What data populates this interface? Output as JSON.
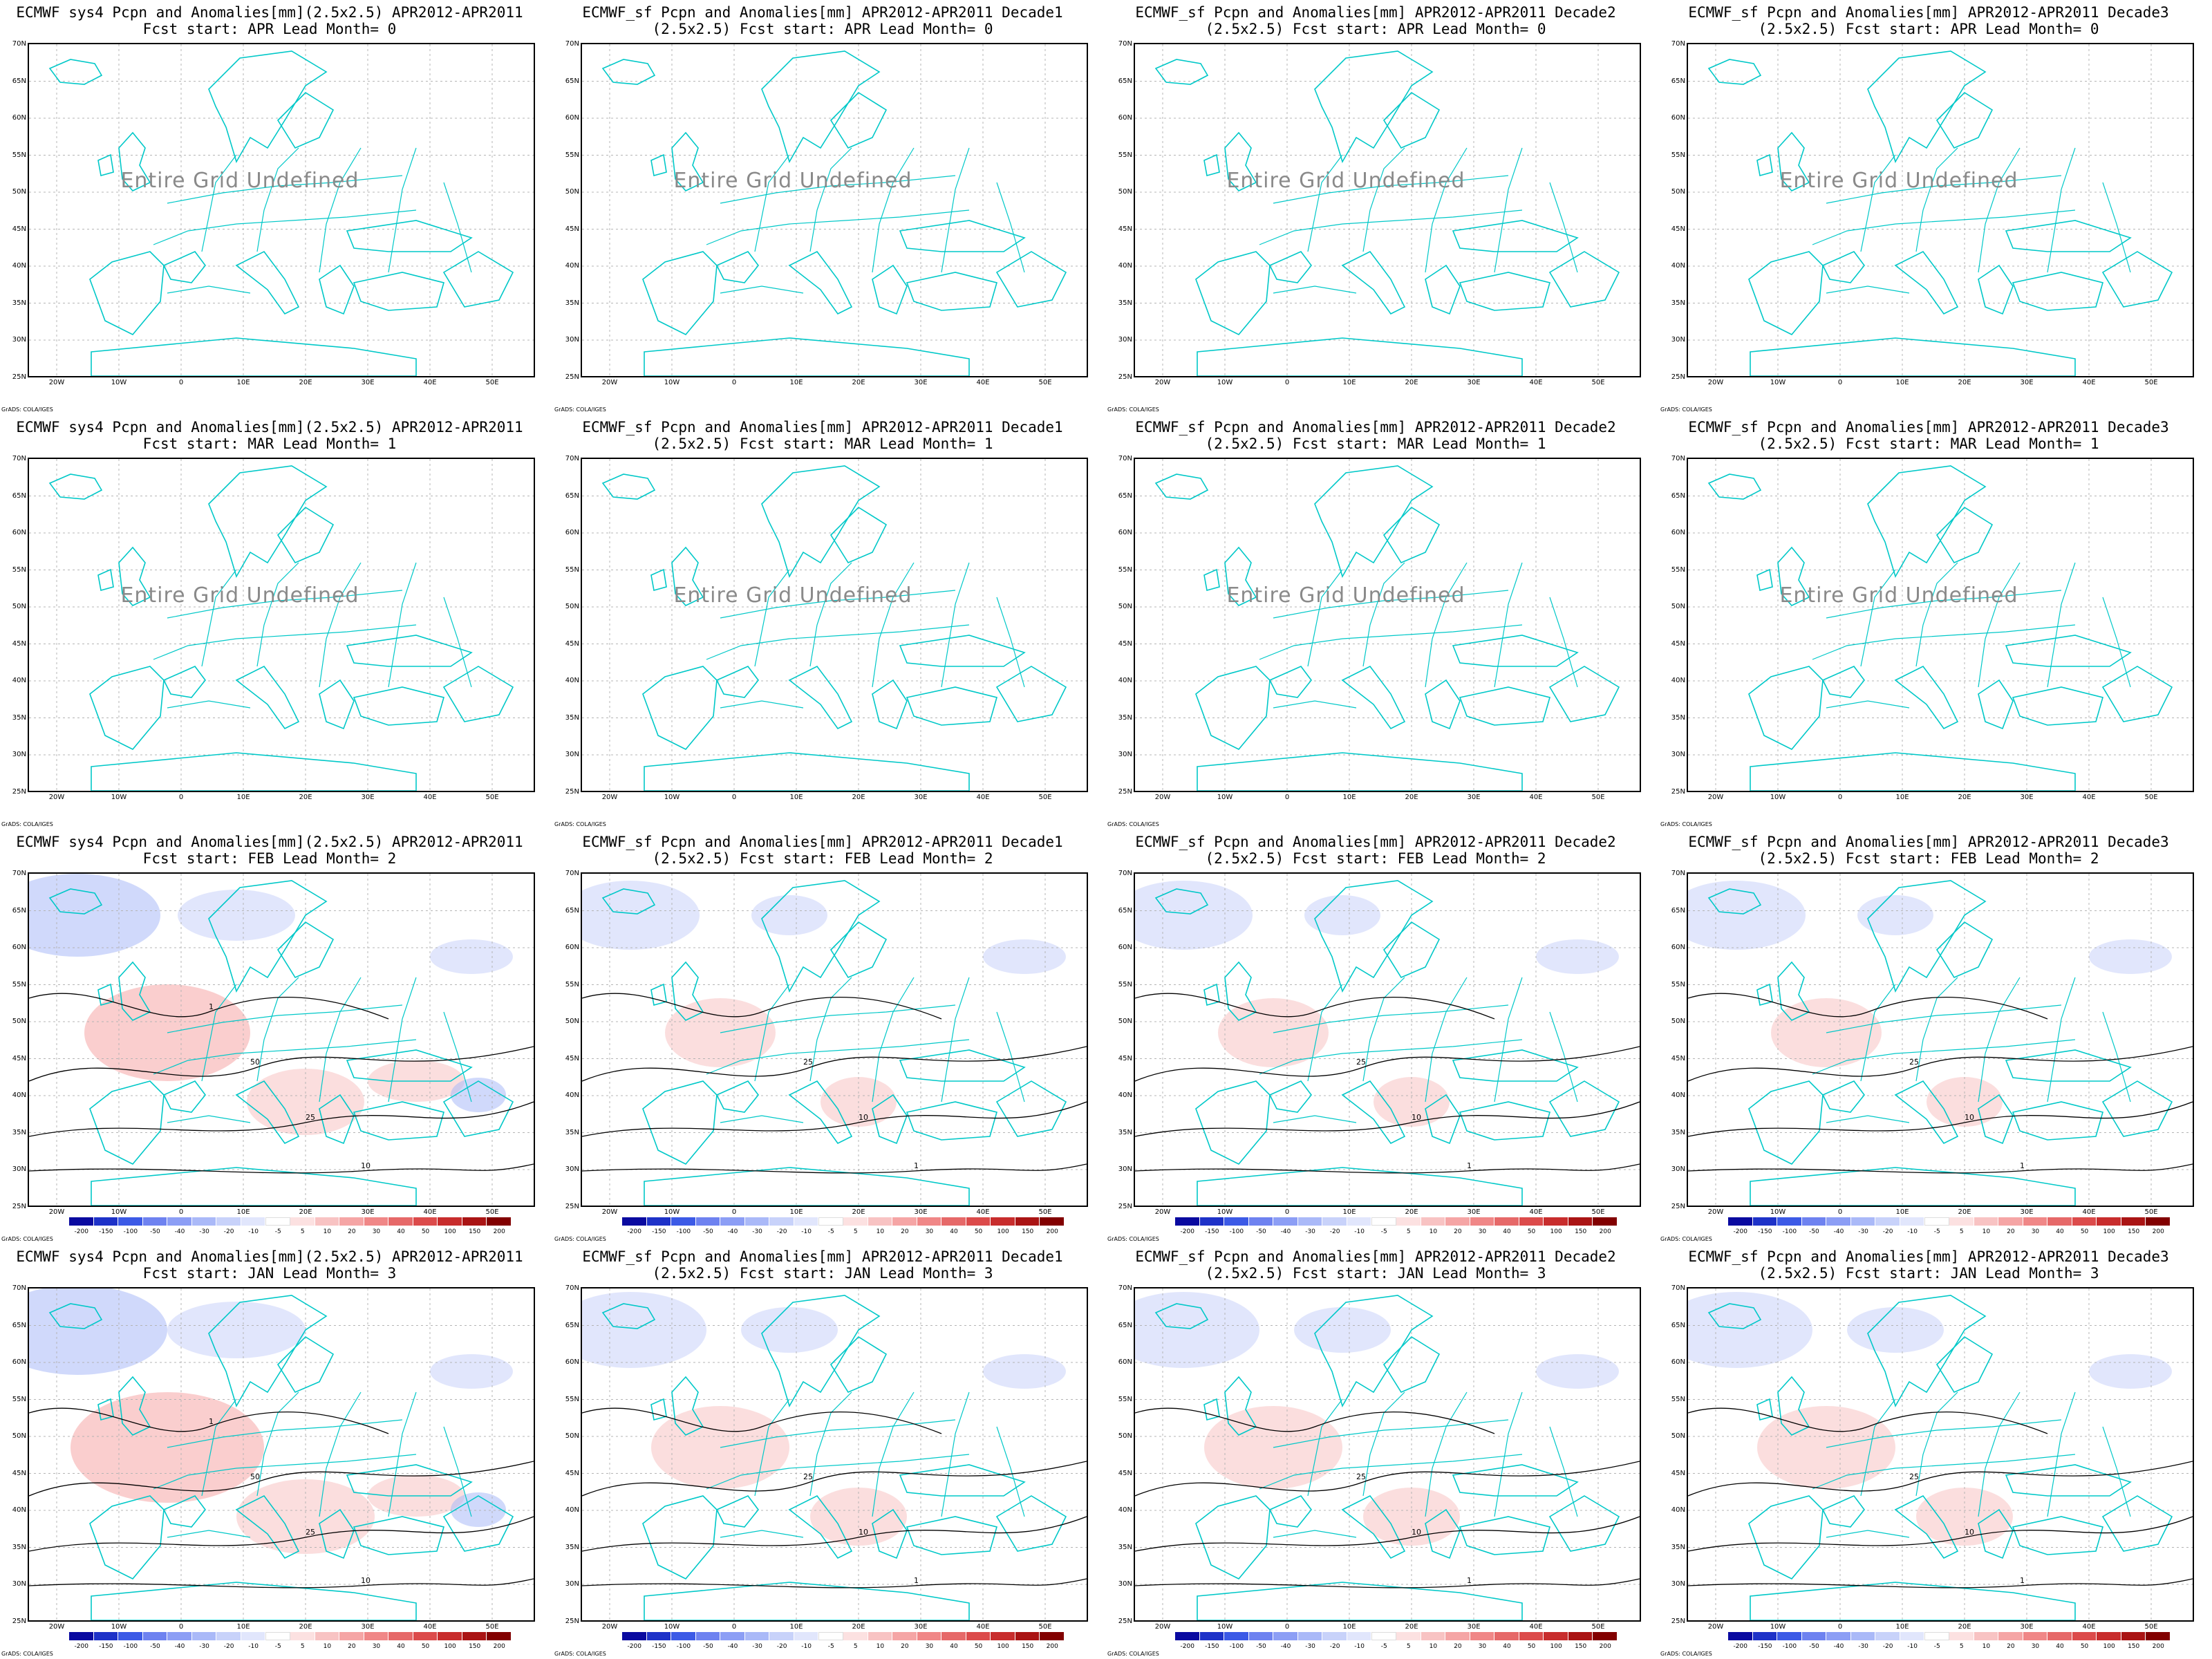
{
  "figure": {
    "credit": "GrADS: COLA/IGES",
    "undefined_message": "Entire Grid Undefined",
    "y_ticks": [
      "70N",
      "65N",
      "60N",
      "55N",
      "50N",
      "45N",
      "40N",
      "35N",
      "30N",
      "25N"
    ],
    "x_ticks": [
      "20W",
      "10W",
      "0",
      "10E",
      "20E",
      "30E",
      "40E",
      "50E"
    ],
    "colorbar_labels": [
      "-200",
      "-150",
      "-100",
      "-50",
      "-40",
      "-30",
      "-20",
      "-10",
      "-5",
      "5",
      "10",
      "20",
      "30",
      "40",
      "50",
      "100",
      "150",
      "200"
    ],
    "colorbar_colors": [
      "#0a0aa0",
      "#1e32c8",
      "#3c5ae6",
      "#6e82f0",
      "#8c9ef5",
      "#aab9f8",
      "#c8d2fa",
      "#e1e6fc",
      "#ffffff",
      "#fce1e1",
      "#f8c3c3",
      "#f5a5a5",
      "#f08787",
      "#e66969",
      "#dc4b4b",
      "#c82d2d",
      "#aa1414",
      "#820000"
    ],
    "colors": {
      "coastline": "#00c8c8",
      "contour": "#000000",
      "grid": "#b4b4b4",
      "undefined_text": "#8a8a8a"
    }
  },
  "panels": [
    {
      "title1": "ECMWF sys4 Pcpn and Anomalies[mm](2.5x2.5) APR2012-APR2011",
      "title2": "Fcst start: APR  Lead Month= 0",
      "undefined": true,
      "colorbar": false,
      "level": 0,
      "contour_labels": []
    },
    {
      "title1": "ECMWF_sf Pcpn and Anomalies[mm] APR2012-APR2011 Decade1",
      "title2": "(2.5x2.5) Fcst start: APR  Lead Month= 0",
      "undefined": true,
      "colorbar": false,
      "level": 0,
      "contour_labels": []
    },
    {
      "title1": "ECMWF_sf Pcpn and Anomalies[mm] APR2012-APR2011 Decade2",
      "title2": "(2.5x2.5) Fcst start: APR  Lead Month= 0",
      "undefined": true,
      "colorbar": false,
      "level": 0,
      "contour_labels": []
    },
    {
      "title1": "ECMWF_sf Pcpn and Anomalies[mm] APR2012-APR2011 Decade3",
      "title2": "(2.5x2.5) Fcst start: APR  Lead Month= 0",
      "undefined": true,
      "colorbar": false,
      "level": 0,
      "contour_labels": []
    },
    {
      "title1": "ECMWF sys4 Pcpn and Anomalies[mm](2.5x2.5) APR2012-APR2011",
      "title2": "Fcst start: MAR  Lead Month= 1",
      "undefined": true,
      "colorbar": false,
      "level": 0,
      "contour_labels": []
    },
    {
      "title1": "ECMWF_sf Pcpn and Anomalies[mm] APR2012-APR2011 Decade1",
      "title2": "(2.5x2.5) Fcst start: MAR  Lead Month= 1",
      "undefined": true,
      "colorbar": false,
      "level": 0,
      "contour_labels": []
    },
    {
      "title1": "ECMWF_sf Pcpn and Anomalies[mm] APR2012-APR2011 Decade2",
      "title2": "(2.5x2.5) Fcst start: MAR  Lead Month= 1",
      "undefined": true,
      "colorbar": false,
      "level": 0,
      "contour_labels": []
    },
    {
      "title1": "ECMWF_sf Pcpn and Anomalies[mm] APR2012-APR2011 Decade3",
      "title2": "(2.5x2.5) Fcst start: MAR  Lead Month= 1",
      "undefined": true,
      "colorbar": false,
      "level": 0,
      "contour_labels": []
    },
    {
      "title1": "ECMWF sys4 Pcpn and Anomalies[mm](2.5x2.5) APR2012-APR2011",
      "title2": "Fcst start: FEB  Lead Month= 2",
      "undefined": false,
      "colorbar": true,
      "level": 3,
      "contour_labels": [
        "50",
        "25",
        "10",
        "1"
      ]
    },
    {
      "title1": "ECMWF_sf Pcpn and Anomalies[mm] APR2012-APR2011 Decade1",
      "title2": "(2.5x2.5) Fcst start: FEB  Lead Month= 2",
      "undefined": false,
      "colorbar": true,
      "level": 1,
      "contour_labels": [
        "25",
        "10",
        "1"
      ]
    },
    {
      "title1": "ECMWF_sf Pcpn and Anomalies[mm] APR2012-APR2011 Decade2",
      "title2": "(2.5x2.5) Fcst start: FEB  Lead Month= 2",
      "undefined": false,
      "colorbar": true,
      "level": 1,
      "contour_labels": [
        "25",
        "10",
        "1"
      ]
    },
    {
      "title1": "ECMWF_sf Pcpn and Anomalies[mm] APR2012-APR2011 Decade3",
      "title2": "(2.5x2.5) Fcst start: FEB  Lead Month= 2",
      "undefined": false,
      "colorbar": true,
      "level": 1,
      "contour_labels": [
        "25",
        "10",
        "1"
      ]
    },
    {
      "title1": "ECMWF sys4 Pcpn and Anomalies[mm](2.5x2.5) APR2012-APR2011",
      "title2": "Fcst start: JAN  Lead Month= 3",
      "undefined": false,
      "colorbar": true,
      "level": 4,
      "contour_labels": [
        "50",
        "25",
        "10",
        "1"
      ]
    },
    {
      "title1": "ECMWF_sf Pcpn and Anomalies[mm] APR2012-APR2011 Decade1",
      "title2": "(2.5x2.5) Fcst start: JAN  Lead Month= 3",
      "undefined": false,
      "colorbar": true,
      "level": 2,
      "contour_labels": [
        "25",
        "10",
        "1"
      ]
    },
    {
      "title1": "ECMWF_sf Pcpn and Anomalies[mm] APR2012-APR2011 Decade2",
      "title2": "(2.5x2.5) Fcst start: JAN  Lead Month= 3",
      "undefined": false,
      "colorbar": true,
      "level": 2,
      "contour_labels": [
        "25",
        "10",
        "1"
      ]
    },
    {
      "title1": "ECMWF_sf Pcpn and Anomalies[mm] APR2012-APR2011 Decade3",
      "title2": "(2.5x2.5) Fcst start: JAN  Lead Month= 3",
      "undefined": false,
      "colorbar": true,
      "level": 2,
      "contour_labels": [
        "25",
        "10",
        "1"
      ]
    }
  ]
}
